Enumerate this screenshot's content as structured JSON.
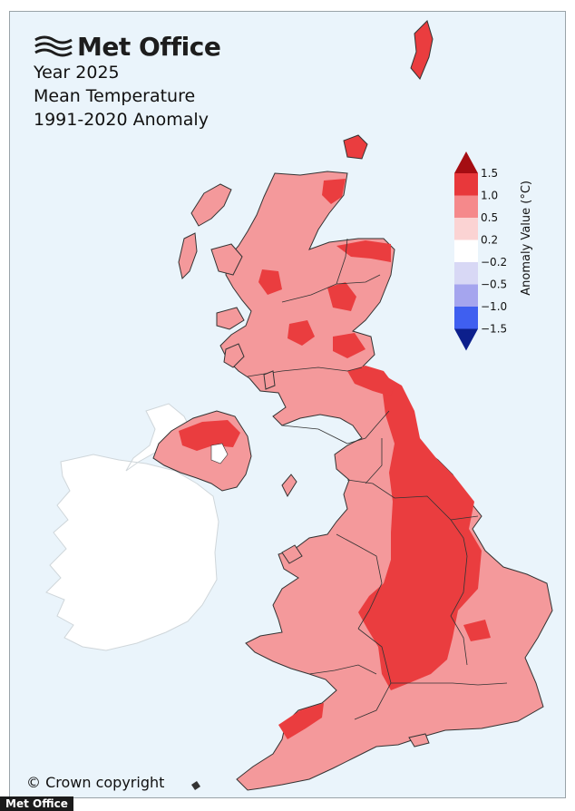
{
  "header": {
    "brand": "Met Office",
    "title_lines": [
      "Year 2025",
      "Mean Temperature",
      "1991-2020 Anomaly"
    ]
  },
  "legend": {
    "title": "Anomaly Value (°C)",
    "ticks": [
      "1.5",
      "1.0",
      "0.5",
      "0.2",
      "−0.2",
      "−0.5",
      "−1.0",
      "−1.5"
    ],
    "bins": [
      {
        "color": "#e8383b"
      },
      {
        "color": "#f5898b"
      },
      {
        "color": "#fbd3d3"
      },
      {
        "color": "#ffffff"
      },
      {
        "color": "#d8d8f5"
      },
      {
        "color": "#a5a5ee"
      },
      {
        "color": "#3f5ff0"
      }
    ],
    "over_color": "#a50d12",
    "under_color": "#0c1f8c"
  },
  "map_colors": {
    "sea": "#eaf4fb",
    "uk_base": "#f4999b",
    "uk_warm": "#ea3d3f",
    "ireland": "#ffffff",
    "outline": "#333333"
  },
  "footer": {
    "copyright": "© Crown copyright",
    "watermark": "Met Office"
  }
}
